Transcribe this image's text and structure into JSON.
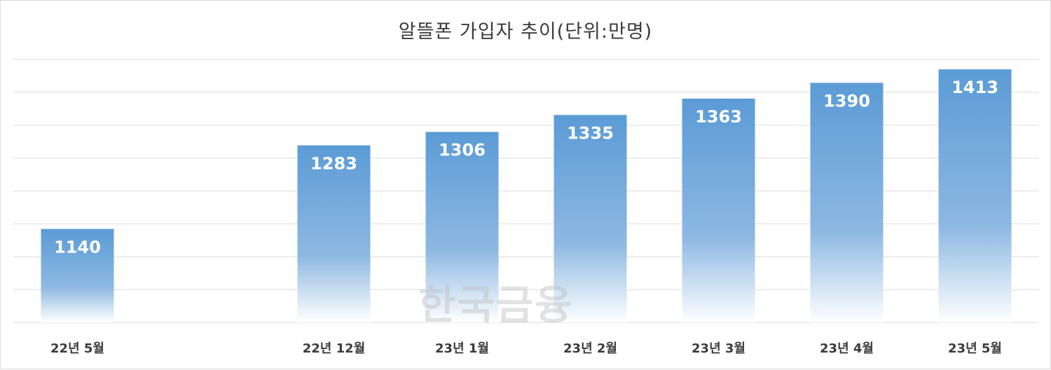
{
  "chart_data": {
    "type": "bar",
    "title": "알뜰폰 가입자 추이(단위:만명)",
    "categories": [
      "22년 5월",
      "",
      "22년 12월",
      "23년 1월",
      "23년 2월",
      "23년 3월",
      "23년 4월",
      "23년 5월"
    ],
    "values": [
      1140,
      null,
      1283,
      1306,
      1335,
      1363,
      1390,
      1413
    ],
    "data_labels": true,
    "legend": "none",
    "grid": true,
    "colors": {
      "bar": "#5b9bd5",
      "bar_fade": "#ffffff",
      "label": "#ffffff",
      "axis_text": "#3b3b3b",
      "grid": "#d9d9d9"
    }
  },
  "watermark": "한국금융"
}
